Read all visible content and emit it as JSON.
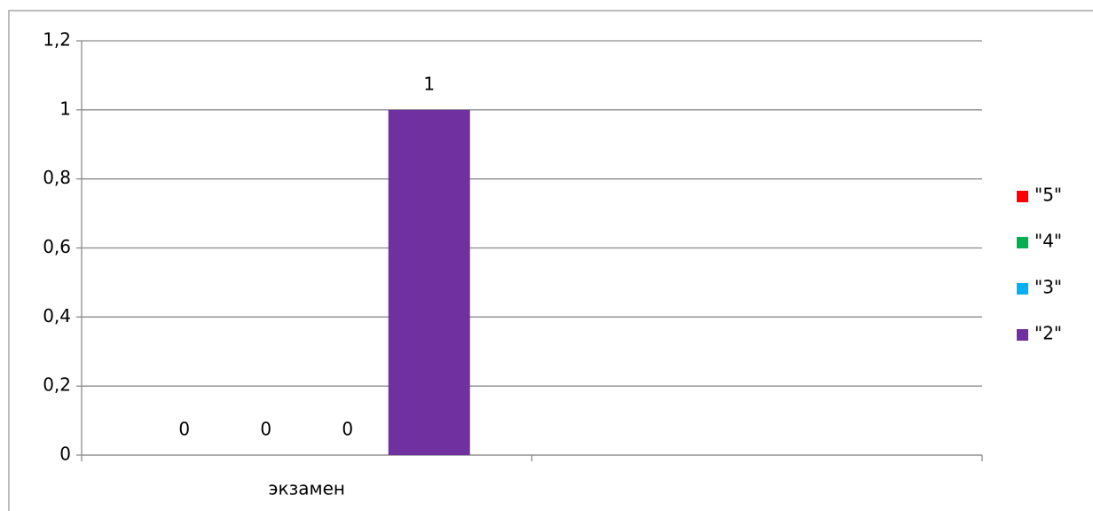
{
  "chart_data": {
    "type": "bar",
    "categories": [
      "экзамен",
      null
    ],
    "series": [
      {
        "name": "\"5\"",
        "color": "#ff0000",
        "values": [
          0,
          null
        ]
      },
      {
        "name": "\"4\"",
        "color": "#00b050",
        "values": [
          0,
          null
        ]
      },
      {
        "name": "\"3\"",
        "color": "#00b0f0",
        "values": [
          0,
          null
        ]
      },
      {
        "name": "\"2\"",
        "color": "#7030a0",
        "values": [
          1,
          null
        ]
      }
    ],
    "ylim": [
      0,
      1.2
    ],
    "yticks": [
      0,
      {
        "value": 0.2,
        "label": "0,2"
      },
      {
        "value": 0.4,
        "label": "0,4"
      },
      {
        "value": 0.6,
        "label": "0,6"
      },
      {
        "value": 0.8,
        "label": "0,8"
      },
      1,
      {
        "value": 1.2,
        "label": "1,2"
      }
    ],
    "grid": true,
    "legend": "right",
    "data_labels": true
  }
}
